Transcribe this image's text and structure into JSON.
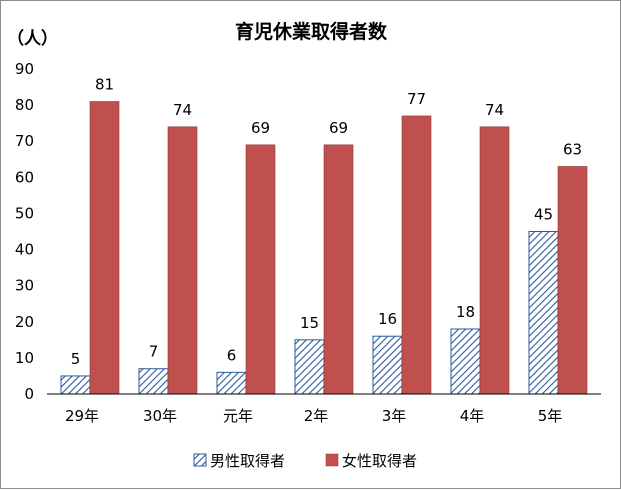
{
  "chart_data": {
    "type": "bar",
    "title": "育児休業取得者数",
    "unit_label": "（人）",
    "categories": [
      "29年",
      "30年",
      "元年",
      "2年",
      "3年",
      "4年",
      "5年"
    ],
    "series": [
      {
        "name": "男性取得者",
        "values": [
          5,
          7,
          6,
          15,
          16,
          18,
          45
        ],
        "color": "#2e5a9c",
        "pattern": "diagonal-hatch"
      },
      {
        "name": "女性取得者",
        "values": [
          81,
          74,
          69,
          69,
          77,
          74,
          63
        ],
        "color": "#c0504d"
      }
    ],
    "ylim": [
      0,
      90
    ],
    "yticks": [
      0,
      10,
      20,
      30,
      40,
      50,
      60,
      70,
      80,
      90
    ],
    "grid": false,
    "data_labels": true,
    "legend_position": "bottom"
  }
}
